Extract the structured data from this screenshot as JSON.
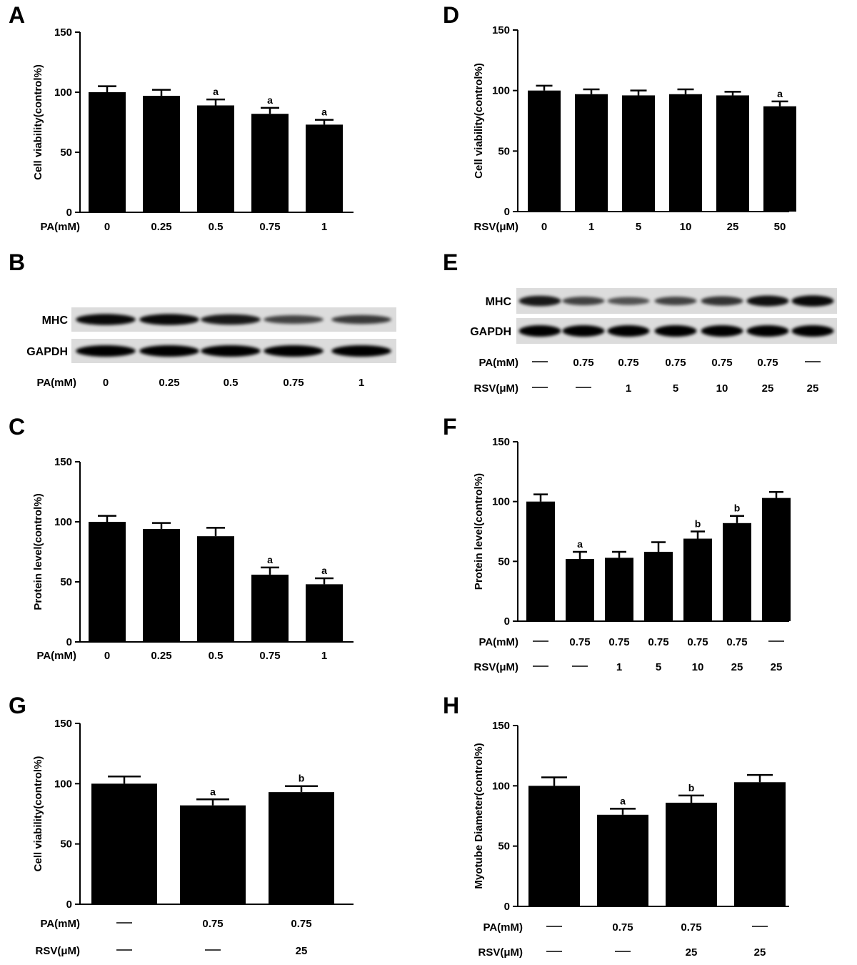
{
  "figure": {
    "panel_letters": [
      "A",
      "B",
      "C",
      "D",
      "E",
      "F",
      "G",
      "H"
    ]
  },
  "chart_data": [
    {
      "panel": "A",
      "type": "bar",
      "ylabel": "Cell viability(control%)",
      "ylim": [
        0,
        150
      ],
      "yticks": [
        0,
        50,
        100,
        150
      ],
      "rows": [
        {
          "name": "PA(mM)",
          "values": [
            "0",
            "0.25",
            "0.5",
            "0.75",
            "1"
          ]
        }
      ],
      "values": [
        100,
        97,
        89,
        82,
        73
      ],
      "errors": [
        5,
        5,
        5,
        5,
        4
      ],
      "annotations": [
        "",
        "",
        "a",
        "a",
        "a"
      ]
    },
    {
      "panel": "C",
      "type": "bar",
      "ylabel": "Protein level(control%)",
      "ylim": [
        0,
        150
      ],
      "yticks": [
        0,
        50,
        100,
        150
      ],
      "rows": [
        {
          "name": "PA(mM)",
          "values": [
            "0",
            "0.25",
            "0.5",
            "0.75",
            "1"
          ]
        }
      ],
      "values": [
        100,
        94,
        88,
        56,
        48
      ],
      "errors": [
        5,
        5,
        7,
        6,
        5
      ],
      "annotations": [
        "",
        "",
        "",
        "a",
        "a"
      ]
    },
    {
      "panel": "D",
      "type": "bar",
      "ylabel": "Cell viability(control%)",
      "ylim": [
        0,
        150
      ],
      "yticks": [
        0,
        50,
        100,
        150
      ],
      "rows": [
        {
          "name": "RSV(μM)",
          "values": [
            "0",
            "1",
            "5",
            "10",
            "25",
            "50"
          ]
        }
      ],
      "values": [
        100,
        97,
        96,
        97,
        96,
        87
      ],
      "errors": [
        4,
        4,
        4,
        4,
        3,
        4
      ],
      "annotations": [
        "",
        "",
        "",
        "",
        "",
        "a"
      ]
    },
    {
      "panel": "F",
      "type": "bar",
      "ylabel": "Protein level(control%)",
      "ylim": [
        0,
        150
      ],
      "yticks": [
        0,
        50,
        100,
        150
      ],
      "rows": [
        {
          "name": "PA(mM)",
          "values": [
            "—",
            "0.75",
            "0.75",
            "0.75",
            "0.75",
            "0.75",
            "—"
          ]
        },
        {
          "name": "RSV(μM)",
          "values": [
            "—",
            "—",
            "1",
            "5",
            "10",
            "25",
            "25"
          ]
        }
      ],
      "values": [
        100,
        52,
        53,
        58,
        69,
        82,
        103
      ],
      "errors": [
        6,
        6,
        5,
        8,
        6,
        6,
        5
      ],
      "annotations": [
        "",
        "a",
        "",
        "",
        "b",
        "b",
        ""
      ]
    },
    {
      "panel": "G",
      "type": "bar",
      "ylabel": "Cell viability(control%)",
      "ylim": [
        0,
        150
      ],
      "yticks": [
        0,
        50,
        100,
        150
      ],
      "rows": [
        {
          "name": "PA(mM)",
          "values": [
            "—",
            "0.75",
            "0.75"
          ]
        },
        {
          "name": "RSV(μM)",
          "values": [
            "—",
            "—",
            "25"
          ]
        }
      ],
      "values": [
        100,
        82,
        93
      ],
      "errors": [
        6,
        5,
        5
      ],
      "annotations": [
        "",
        "a",
        "b"
      ]
    },
    {
      "panel": "H",
      "type": "bar",
      "ylabel": "Myotube Diameter(control%)",
      "ylim": [
        0,
        150
      ],
      "yticks": [
        0,
        50,
        100,
        150
      ],
      "rows": [
        {
          "name": "PA(mM)",
          "values": [
            "—",
            "0.75",
            "0.75",
            "—"
          ]
        },
        {
          "name": "RSV(μM)",
          "values": [
            "—",
            "—",
            "25",
            "25"
          ]
        }
      ],
      "values": [
        100,
        76,
        86,
        103
      ],
      "errors": [
        7,
        5,
        6,
        6
      ],
      "annotations": [
        "",
        "a",
        "b",
        ""
      ]
    }
  ],
  "blots": [
    {
      "panel": "B",
      "bands": [
        {
          "name": "MHC",
          "intensities": [
            0.95,
            0.95,
            0.85,
            0.6,
            0.65
          ]
        },
        {
          "name": "GAPDH",
          "intensities": [
            1,
            1,
            1,
            1,
            1
          ]
        }
      ],
      "rows": [
        {
          "name": "PA(mM)",
          "values": [
            "0",
            "0.25",
            "0.5",
            "0.75",
            "1"
          ]
        }
      ]
    },
    {
      "panel": "E",
      "bands": [
        {
          "name": "MHC",
          "intensities": [
            0.85,
            0.6,
            0.5,
            0.6,
            0.7,
            0.9,
            0.95
          ]
        },
        {
          "name": "GAPDH",
          "intensities": [
            1,
            1,
            1,
            1,
            1,
            1,
            1
          ]
        }
      ],
      "rows": [
        {
          "name": "PA(mM)",
          "values": [
            "—",
            "0.75",
            "0.75",
            "0.75",
            "0.75",
            "0.75",
            "—"
          ]
        },
        {
          "name": "RSV(μM)",
          "values": [
            "—",
            "—",
            "1",
            "5",
            "10",
            "25",
            "25"
          ]
        }
      ]
    }
  ]
}
